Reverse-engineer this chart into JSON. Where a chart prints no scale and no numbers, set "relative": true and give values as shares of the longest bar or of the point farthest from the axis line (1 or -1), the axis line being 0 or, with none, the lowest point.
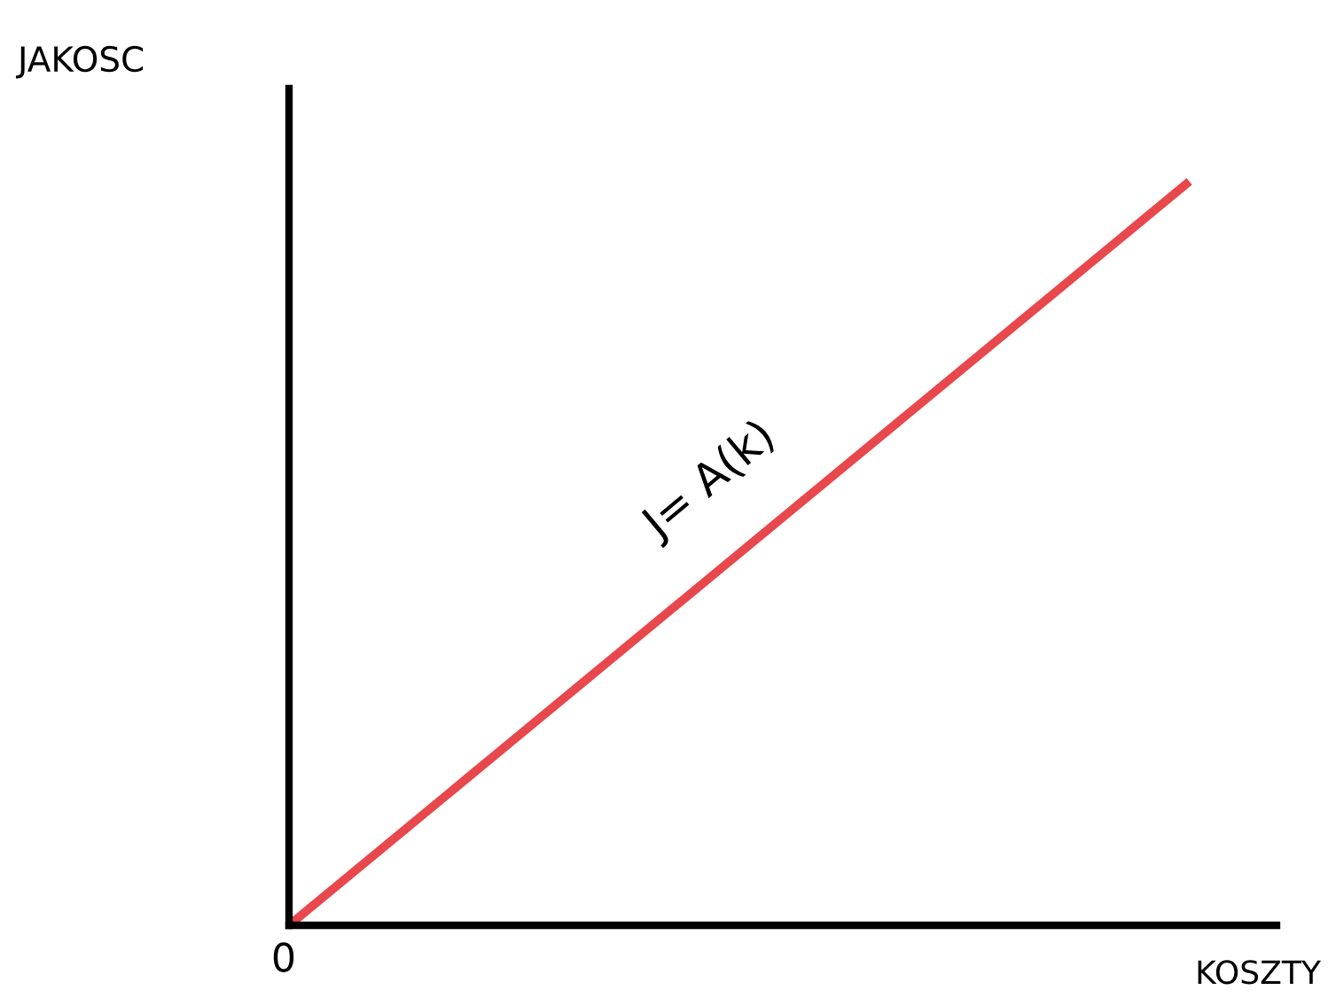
{
  "chart_data": {
    "type": "line",
    "relative": true,
    "xlabel": "KOSZTY",
    "ylabel": "JAKOSC",
    "categories": [
      null,
      null
    ],
    "series": [
      {
        "color": "#e8474c",
        "values": [
          0,
          1
        ]
      }
    ],
    "annotations": [
      "J= A(k)",
      "0"
    ],
    "marker": "none",
    "line_style": "solid"
  }
}
